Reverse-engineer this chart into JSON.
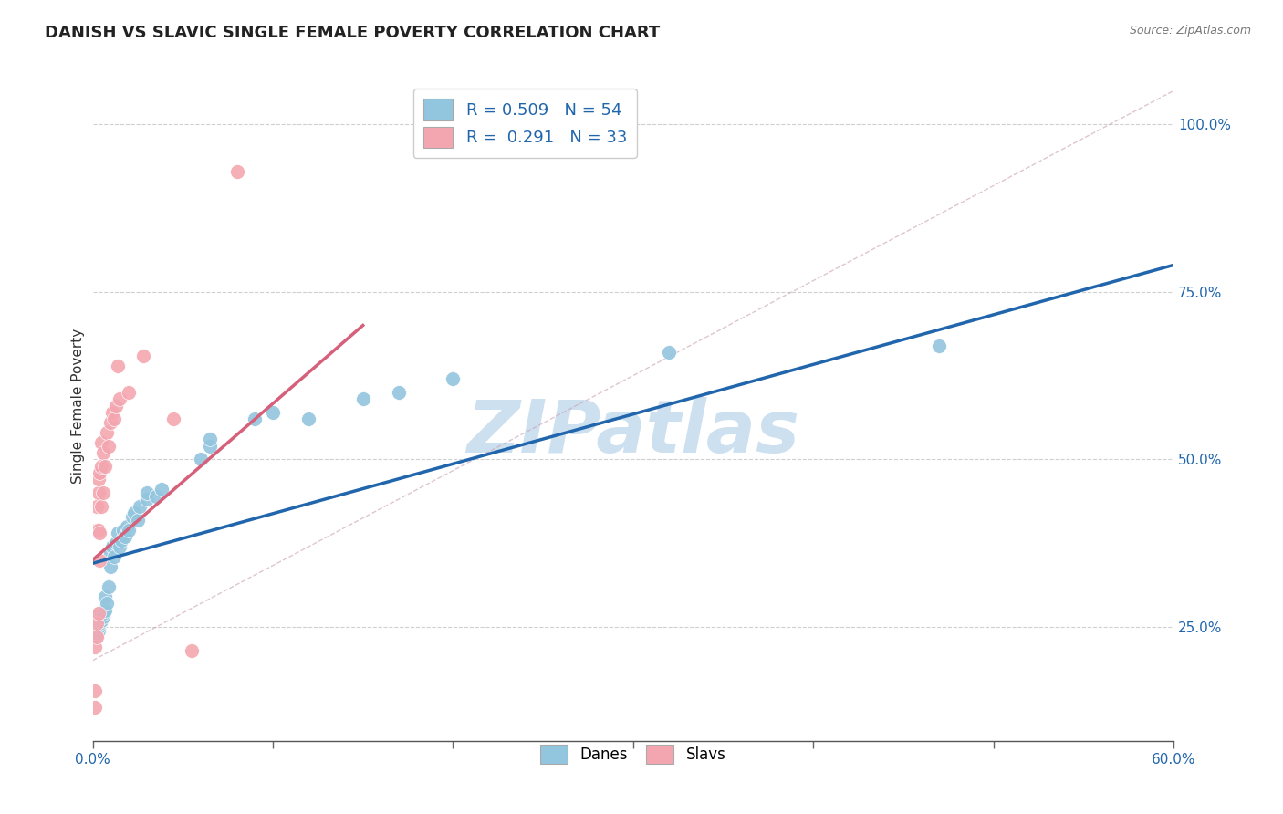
{
  "title": "DANISH VS SLAVIC SINGLE FEMALE POVERTY CORRELATION CHART",
  "source": "Source: ZipAtlas.com",
  "ylabel_label": "Single Female Poverty",
  "xlim": [
    0.0,
    0.6
  ],
  "ylim": [
    0.08,
    1.08
  ],
  "y_tick_positions": [
    0.25,
    0.5,
    0.75,
    1.0
  ],
  "y_tick_labels": [
    "25.0%",
    "50.0%",
    "75.0%",
    "100.0%"
  ],
  "blue_R": 0.509,
  "blue_N": 54,
  "pink_R": 0.291,
  "pink_N": 33,
  "blue_color": "#92c5de",
  "pink_color": "#f4a6b0",
  "blue_line_color": "#2166ac",
  "pink_line_color": "#d6607a",
  "grid_color": "#bbbbbb",
  "watermark": "ZIPatlas",
  "watermark_color": "#cde0f0",
  "legend_blue_label": "Danes",
  "legend_pink_label": "Slavs",
  "blue_dots": [
    [
      0.001,
      0.235
    ],
    [
      0.001,
      0.245
    ],
    [
      0.002,
      0.24
    ],
    [
      0.002,
      0.25
    ],
    [
      0.002,
      0.255
    ],
    [
      0.002,
      0.26
    ],
    [
      0.003,
      0.245
    ],
    [
      0.003,
      0.25
    ],
    [
      0.003,
      0.255
    ],
    [
      0.003,
      0.26
    ],
    [
      0.003,
      0.27
    ],
    [
      0.004,
      0.255
    ],
    [
      0.004,
      0.26
    ],
    [
      0.004,
      0.265
    ],
    [
      0.005,
      0.26
    ],
    [
      0.005,
      0.265
    ],
    [
      0.005,
      0.27
    ],
    [
      0.006,
      0.265
    ],
    [
      0.006,
      0.27
    ],
    [
      0.007,
      0.275
    ],
    [
      0.007,
      0.295
    ],
    [
      0.008,
      0.285
    ],
    [
      0.009,
      0.31
    ],
    [
      0.01,
      0.34
    ],
    [
      0.01,
      0.36
    ],
    [
      0.011,
      0.37
    ],
    [
      0.012,
      0.355
    ],
    [
      0.013,
      0.375
    ],
    [
      0.014,
      0.39
    ],
    [
      0.015,
      0.37
    ],
    [
      0.016,
      0.38
    ],
    [
      0.017,
      0.395
    ],
    [
      0.018,
      0.385
    ],
    [
      0.019,
      0.4
    ],
    [
      0.02,
      0.395
    ],
    [
      0.022,
      0.415
    ],
    [
      0.023,
      0.42
    ],
    [
      0.025,
      0.41
    ],
    [
      0.026,
      0.43
    ],
    [
      0.03,
      0.44
    ],
    [
      0.03,
      0.45
    ],
    [
      0.035,
      0.445
    ],
    [
      0.038,
      0.455
    ],
    [
      0.06,
      0.5
    ],
    [
      0.065,
      0.52
    ],
    [
      0.065,
      0.53
    ],
    [
      0.09,
      0.56
    ],
    [
      0.1,
      0.57
    ],
    [
      0.12,
      0.56
    ],
    [
      0.15,
      0.59
    ],
    [
      0.17,
      0.6
    ],
    [
      0.2,
      0.62
    ],
    [
      0.32,
      0.66
    ],
    [
      0.47,
      0.67
    ]
  ],
  "pink_dots": [
    [
      0.001,
      0.13
    ],
    [
      0.001,
      0.155
    ],
    [
      0.001,
      0.22
    ],
    [
      0.002,
      0.235
    ],
    [
      0.002,
      0.255
    ],
    [
      0.002,
      0.395
    ],
    [
      0.002,
      0.43
    ],
    [
      0.003,
      0.27
    ],
    [
      0.003,
      0.395
    ],
    [
      0.003,
      0.45
    ],
    [
      0.003,
      0.47
    ],
    [
      0.004,
      0.35
    ],
    [
      0.004,
      0.39
    ],
    [
      0.004,
      0.48
    ],
    [
      0.005,
      0.43
    ],
    [
      0.005,
      0.49
    ],
    [
      0.005,
      0.525
    ],
    [
      0.006,
      0.45
    ],
    [
      0.006,
      0.51
    ],
    [
      0.007,
      0.49
    ],
    [
      0.008,
      0.54
    ],
    [
      0.009,
      0.52
    ],
    [
      0.01,
      0.555
    ],
    [
      0.011,
      0.57
    ],
    [
      0.012,
      0.56
    ],
    [
      0.013,
      0.58
    ],
    [
      0.014,
      0.64
    ],
    [
      0.015,
      0.59
    ],
    [
      0.02,
      0.6
    ],
    [
      0.028,
      0.655
    ],
    [
      0.045,
      0.56
    ],
    [
      0.055,
      0.215
    ],
    [
      0.08,
      0.93
    ]
  ],
  "blue_line_x": [
    0.0,
    0.6
  ],
  "blue_line_y": [
    0.345,
    0.79
  ],
  "pink_line_x": [
    0.0,
    0.15
  ],
  "pink_line_y": [
    0.35,
    0.7
  ],
  "ref_line_x": [
    0.0,
    0.6
  ],
  "ref_line_y": [
    0.2,
    1.05
  ],
  "title_fontsize": 13,
  "axis_label_fontsize": 11,
  "tick_fontsize": 11,
  "legend_fontsize": 13
}
